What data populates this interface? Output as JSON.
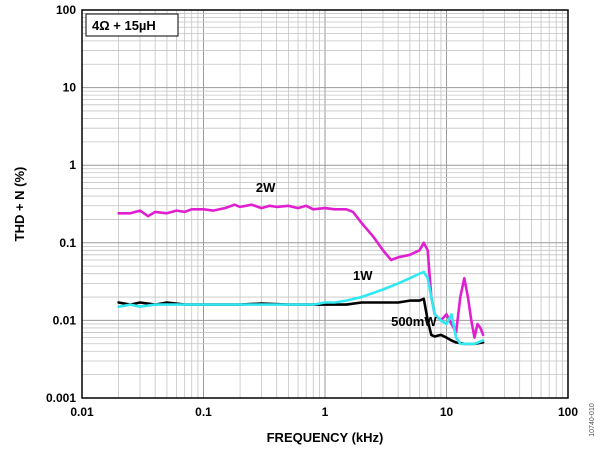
{
  "chart_data": {
    "type": "line",
    "title": "",
    "annotation_box": "4Ω + 15µH",
    "figure_id": "10740-010",
    "xlabel": "FREQUENCY (kHz)",
    "ylabel": "THD + N (%)",
    "xscale": "log",
    "yscale": "log",
    "xlim": [
      0.01,
      100
    ],
    "ylim": [
      0.001,
      100
    ],
    "x_ticks": [
      0.01,
      0.1,
      1,
      10,
      100
    ],
    "x_tick_labels": [
      "0.01",
      "0.1",
      "1",
      "10",
      "100"
    ],
    "y_ticks": [
      0.001,
      0.01,
      0.1,
      1,
      10,
      100
    ],
    "y_tick_labels": [
      "0.001",
      "0.01",
      "0.1",
      "1",
      "10",
      "100"
    ],
    "grid": true,
    "series": [
      {
        "name": "2W",
        "color": "#e020d0",
        "points": [
          [
            0.02,
            0.24
          ],
          [
            0.025,
            0.24
          ],
          [
            0.03,
            0.26
          ],
          [
            0.035,
            0.22
          ],
          [
            0.04,
            0.25
          ],
          [
            0.05,
            0.24
          ],
          [
            0.06,
            0.26
          ],
          [
            0.07,
            0.25
          ],
          [
            0.08,
            0.27
          ],
          [
            0.1,
            0.27
          ],
          [
            0.12,
            0.26
          ],
          [
            0.15,
            0.28
          ],
          [
            0.18,
            0.31
          ],
          [
            0.2,
            0.29
          ],
          [
            0.25,
            0.31
          ],
          [
            0.3,
            0.28
          ],
          [
            0.35,
            0.3
          ],
          [
            0.4,
            0.29
          ],
          [
            0.5,
            0.3
          ],
          [
            0.6,
            0.28
          ],
          [
            0.7,
            0.3
          ],
          [
            0.8,
            0.27
          ],
          [
            1.0,
            0.28
          ],
          [
            1.2,
            0.27
          ],
          [
            1.5,
            0.27
          ],
          [
            1.7,
            0.25
          ],
          [
            2.0,
            0.18
          ],
          [
            2.5,
            0.12
          ],
          [
            3.0,
            0.08
          ],
          [
            3.5,
            0.06
          ],
          [
            4.0,
            0.065
          ],
          [
            5.0,
            0.07
          ],
          [
            6.0,
            0.08
          ],
          [
            6.5,
            0.1
          ],
          [
            7.0,
            0.08
          ],
          [
            7.5,
            0.02
          ],
          [
            8.0,
            0.012
          ],
          [
            9.0,
            0.01
          ],
          [
            10.0,
            0.012
          ],
          [
            11.0,
            0.009
          ],
          [
            12.0,
            0.007
          ],
          [
            13.0,
            0.02
          ],
          [
            14.0,
            0.035
          ],
          [
            15.0,
            0.02
          ],
          [
            16.0,
            0.01
          ],
          [
            17.0,
            0.006
          ],
          [
            18.0,
            0.009
          ],
          [
            19.0,
            0.008
          ],
          [
            20.0,
            0.0065
          ]
        ]
      },
      {
        "name": "1W",
        "color": "#30e8f0",
        "points": [
          [
            0.02,
            0.015
          ],
          [
            0.025,
            0.016
          ],
          [
            0.03,
            0.015
          ],
          [
            0.04,
            0.016
          ],
          [
            0.05,
            0.016
          ],
          [
            0.07,
            0.016
          ],
          [
            0.1,
            0.016
          ],
          [
            0.2,
            0.016
          ],
          [
            0.3,
            0.016
          ],
          [
            0.5,
            0.016
          ],
          [
            0.8,
            0.016
          ],
          [
            1.0,
            0.017
          ],
          [
            1.2,
            0.017
          ],
          [
            1.5,
            0.018
          ],
          [
            2.0,
            0.02
          ],
          [
            3.0,
            0.025
          ],
          [
            4.0,
            0.03
          ],
          [
            5.0,
            0.035
          ],
          [
            6.0,
            0.04
          ],
          [
            6.5,
            0.042
          ],
          [
            7.0,
            0.035
          ],
          [
            7.5,
            0.02
          ],
          [
            8.0,
            0.012
          ],
          [
            9.0,
            0.01
          ],
          [
            10.0,
            0.009
          ],
          [
            11.0,
            0.012
          ],
          [
            12.0,
            0.006
          ],
          [
            13.0,
            0.005
          ],
          [
            15.0,
            0.005
          ],
          [
            17.0,
            0.005
          ],
          [
            20.0,
            0.0055
          ]
        ]
      },
      {
        "name": "500mW",
        "color": "#000000",
        "points": [
          [
            0.02,
            0.017
          ],
          [
            0.025,
            0.016
          ],
          [
            0.03,
            0.017
          ],
          [
            0.04,
            0.016
          ],
          [
            0.05,
            0.017
          ],
          [
            0.07,
            0.016
          ],
          [
            0.1,
            0.016
          ],
          [
            0.2,
            0.016
          ],
          [
            0.3,
            0.0165
          ],
          [
            0.5,
            0.016
          ],
          [
            0.8,
            0.016
          ],
          [
            1.0,
            0.016
          ],
          [
            1.5,
            0.016
          ],
          [
            2.0,
            0.017
          ],
          [
            3.0,
            0.017
          ],
          [
            4.0,
            0.017
          ],
          [
            5.0,
            0.018
          ],
          [
            6.0,
            0.018
          ],
          [
            6.5,
            0.019
          ],
          [
            7.0,
            0.01
          ],
          [
            7.5,
            0.0065
          ],
          [
            8.0,
            0.0062
          ],
          [
            9.0,
            0.0065
          ],
          [
            10.0,
            0.006
          ],
          [
            11.0,
            0.0055
          ],
          [
            12.0,
            0.0052
          ],
          [
            14.0,
            0.005
          ],
          [
            17.0,
            0.005
          ],
          [
            20.0,
            0.0052
          ]
        ]
      }
    ],
    "series_label_positions": [
      [
        0.27,
        0.45
      ],
      [
        1.7,
        0.033
      ],
      [
        3.5,
        0.0085
      ]
    ]
  }
}
